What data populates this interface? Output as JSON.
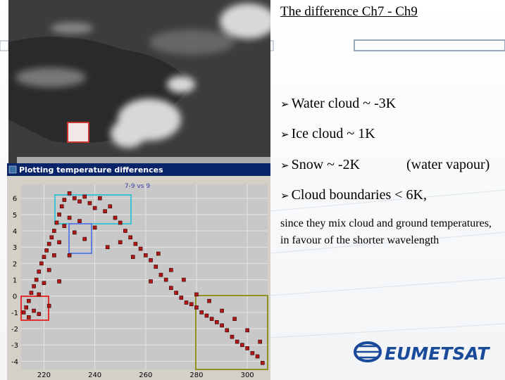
{
  "slide": {
    "title": "The difference  Ch7 - Ch9",
    "bullets": [
      "Water cloud ~ -3K",
      "Ice cloud ~ 1K",
      "Snow ~  -2K",
      "Cloud boundaries < 6K,"
    ],
    "bullet_aside": "(water vapour)",
    "note": "since they mix cloud and ground temperatures, in favour of the shorter wavelength",
    "logo": "EUMETSAT"
  },
  "window_title": "Plotting temperature differences",
  "chart_data": {
    "type": "scatter",
    "title": "7-9 vs 9",
    "color": "#b01818",
    "x": [
      212,
      213,
      214,
      215,
      216,
      217,
      218,
      219,
      220,
      221,
      222,
      223,
      224,
      225,
      226,
      227,
      228,
      230,
      232,
      234,
      236,
      238,
      240,
      242,
      244,
      246,
      248,
      250,
      252,
      254,
      256,
      258,
      260,
      262,
      264,
      266,
      268,
      270,
      272,
      274,
      276,
      278,
      280,
      282,
      284,
      286,
      288,
      290,
      292,
      294,
      296,
      298,
      300,
      302,
      304,
      306,
      214,
      216,
      218,
      220,
      222,
      224,
      226,
      228,
      230,
      232,
      234,
      236,
      240,
      245,
      250,
      255,
      262,
      265,
      270,
      275,
      280,
      285,
      290,
      295,
      300,
      305,
      218,
      222,
      226,
      230
    ],
    "values": [
      -1,
      -0.7,
      -0.3,
      0.2,
      0.6,
      1,
      1.5,
      2,
      2.4,
      2.8,
      3.2,
      3.6,
      4,
      4.5,
      5,
      5.5,
      5.9,
      6.3,
      6,
      5.8,
      6.1,
      5.7,
      5.4,
      6,
      5.2,
      5.5,
      4.8,
      4.5,
      4,
      3.6,
      3.2,
      2.9,
      2.5,
      2.2,
      1.8,
      1.3,
      1,
      0.5,
      0.2,
      -0.1,
      -0.4,
      -0.5,
      -0.7,
      -1,
      -1.2,
      -1.4,
      -1.6,
      -1.8,
      -2.1,
      -2.5,
      -2.8,
      -3,
      -3.2,
      -3.5,
      -3.7,
      -4.1,
      -1.3,
      -0.9,
      0.1,
      0.8,
      1.6,
      2.5,
      3.3,
      4.3,
      4.8,
      3.9,
      4.6,
      3.5,
      4.2,
      3,
      3.3,
      2.4,
      0.9,
      2.6,
      1.6,
      1,
      0.1,
      -0.3,
      -0.9,
      -1.4,
      -2.1,
      -2.8,
      -1.1,
      -0.6,
      0.9,
      2.5
    ],
    "xlim": [
      211,
      308
    ],
    "ylim": [
      -4.5,
      6.85
    ],
    "xticks": [
      220,
      240,
      260,
      280,
      300
    ],
    "yticks": [
      -4,
      -3,
      -2,
      -1,
      0,
      1,
      2,
      3,
      4,
      5,
      6
    ]
  }
}
